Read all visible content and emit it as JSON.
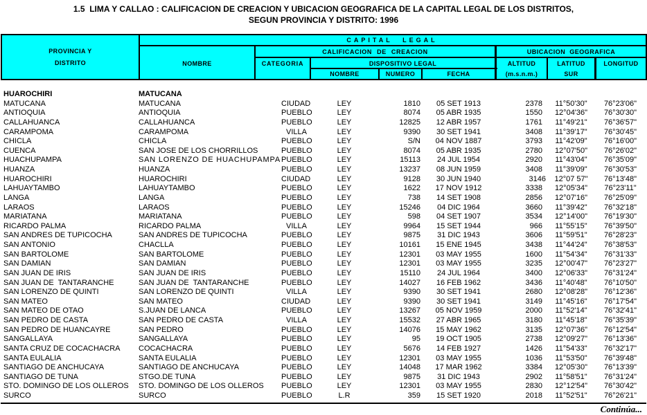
{
  "title": {
    "line1": "1.5  LIMA Y CALLAO : CALIFICACION DE CREACION Y UBICACION GEOGRAFICA DE LA CAPITAL LEGAL DE LOS DISTRITOS,",
    "line2": "SEGUN PROVINCIA Y DISTRITO: 1996"
  },
  "colors": {
    "header_bg": "#00ffff",
    "border": "#000000",
    "text": "#000000",
    "page_bg": "#ffffff"
  },
  "table": {
    "header": {
      "col_provincia": [
        "PROVINCIA Y",
        "DISTRITO"
      ],
      "capital_legal": "CAPITAL LEGAL",
      "nombre": "NOMBRE",
      "calificacion": "CALIFICACION DE CREACION",
      "ubicacion": "UBICACION GEOGRAFICA",
      "categoria": "CATEGORIA",
      "dispositivo": "DISPOSITIVO LEGAL",
      "dispositivo_nombre": "NOMBRE",
      "dispositivo_numero": "NUMERO",
      "dispositivo_fecha": "FECHA",
      "altitud": [
        "ALTITUD",
        "(m.s.n.m.)"
      ],
      "latitud": [
        "LATITUD",
        "SUR"
      ],
      "longitud": "LONGITUD"
    },
    "group_row": {
      "provincia": "HUAROCHIRI",
      "capital": "MATUCANA"
    },
    "rows": [
      {
        "distrito": "MATUCANA",
        "nombre": "MATUCANA",
        "categoria": "CIUDAD",
        "dispositivo": "LEY",
        "numero": "1810",
        "fecha": "05 SET 1913",
        "altitud": "2378",
        "latitud": "11°50'30\"",
        "longitud": "76°23'06\""
      },
      {
        "distrito": "ANTIOQUIA",
        "nombre": "ANTIOQUIA",
        "categoria": "PUEBLO",
        "dispositivo": "LEY",
        "numero": "8074",
        "fecha": "05 ABR 1935",
        "altitud": "1550",
        "latitud": "12°04'36\"",
        "longitud": "76°30'30\""
      },
      {
        "distrito": "CALLAHUANCA",
        "nombre": "CALLAHUANCA",
        "categoria": "PUEBLO",
        "dispositivo": "LEY",
        "numero": "12825",
        "fecha": "12 ABR 1957",
        "altitud": "1761",
        "latitud": "11°49'21\"",
        "longitud": "76°36'57\""
      },
      {
        "distrito": "CARAMPOMA",
        "nombre": "CARAMPOMA",
        "categoria": "VILLA",
        "dispositivo": "LEY",
        "numero": "9390",
        "fecha": "30 SET 1941",
        "altitud": "3408",
        "latitud": "11°39'17\"",
        "longitud": "76°30'45\""
      },
      {
        "distrito": "CHICLA",
        "nombre": "CHICLA",
        "categoria": "PUEBLO",
        "dispositivo": "LEY",
        "numero": "S/N",
        "fecha": "04 NOV 1887",
        "altitud": "3793",
        "latitud": "11°42'09\"",
        "longitud": "76°16'00\""
      },
      {
        "distrito": "CUENCA",
        "nombre": "SAN JOSE DE LOS CHORRILLOS",
        "categoria": "PUEBLO",
        "dispositivo": "LEY",
        "numero": "8074",
        "fecha": "05 ABR 1935",
        "altitud": "2780",
        "latitud": "12°07'50\"",
        "longitud": "76°26'02\""
      },
      {
        "distrito": "HUACHUPAMPA",
        "nombre": "SAN LORENZO DE HUACHUPAMPA",
        "nombre_clipped": true,
        "categoria": "PUEBLO",
        "dispositivo": "LEY",
        "numero": "15113",
        "fecha": "24 JUL 1954",
        "altitud": "2920",
        "latitud": "11°43'04\"",
        "longitud": "76°35'09\""
      },
      {
        "distrito": "HUANZA",
        "nombre": "HUANZA",
        "categoria": "PUEBLO",
        "dispositivo": "LEY",
        "numero": "13237",
        "fecha": "08 JUN 1959",
        "altitud": "3408",
        "latitud": "11°39'09\"",
        "longitud": "76°30'53\""
      },
      {
        "distrito": "HUAROCHIRI",
        "nombre": "HUAROCHIRI",
        "categoria": "CIUDAD",
        "dispositivo": "LEY",
        "numero": "9128",
        "fecha": "30 JUN 1940",
        "altitud": "3146",
        "altitud_offset": true,
        "latitud": "12°07 57\"",
        "longitud": "76°13'48\""
      },
      {
        "distrito": "LAHUAYTAMBO",
        "nombre": "LAHUAYTAMBO",
        "categoria": "PUEBLO",
        "dispositivo": "LEY",
        "numero": "1622",
        "fecha": "17 NOV 1912",
        "altitud": "3338",
        "latitud": "12°05'34\"",
        "longitud": "76°23'11\""
      },
      {
        "distrito": "LANGA",
        "nombre": "LANGA",
        "categoria": "PUEBLO",
        "dispositivo": "LEY",
        "numero": "738",
        "fecha": "14 SET 1908",
        "altitud": "2856",
        "latitud": "12°07'16\"",
        "longitud": "76°25'09\""
      },
      {
        "distrito": "LARAOS",
        "nombre": "LARAOS",
        "categoria": "PUEBLO",
        "dispositivo": "LEY",
        "numero": "15246",
        "fecha": "04 DIC 1964",
        "altitud": "3660",
        "latitud": "11°39'42\"",
        "longitud": "76°32'18\""
      },
      {
        "distrito": "MARIATANA",
        "nombre": "MARIATANA",
        "categoria": "PUEBLO",
        "dispositivo": "LEY",
        "numero": "598",
        "fecha": "04 SET 1907",
        "altitud": "3534",
        "latitud": "12°14'00\"",
        "longitud": "76°19'30\""
      },
      {
        "distrito": "RICARDO PALMA",
        "nombre": "RICARDO PALMA",
        "categoria": "VILLA",
        "dispositivo": "LEY",
        "numero": "9964",
        "fecha": "15 SET 1944",
        "altitud": "966",
        "latitud": "11°55'15\"",
        "longitud": "76°39'50\""
      },
      {
        "distrito": "SAN ANDRES DE TUPICOCHA",
        "nombre": "SAN ANDRES DE TUPICOCHA",
        "categoria": "PUEBLO",
        "dispositivo": "LEY",
        "numero": "9875",
        "fecha": "31 DIC 1943",
        "altitud": "3606",
        "latitud": "11°59'51\"",
        "longitud": "76°28'23\""
      },
      {
        "distrito": "SAN ANTONIO",
        "nombre": "CHACLLA",
        "categoria": "PUEBLO",
        "dispositivo": "LEY",
        "numero": "10161",
        "fecha": "15 ENE 1945",
        "altitud": "3438",
        "latitud": "11°44'24\"",
        "longitud": "76°38'53\""
      },
      {
        "distrito": "SAN BARTOLOME",
        "nombre": "SAN BARTOLOME",
        "categoria": "PUEBLO",
        "dispositivo": "LEY",
        "numero": "12301",
        "fecha": "03 MAY 1955",
        "altitud": "1600",
        "latitud": "11°54'34\"",
        "longitud": "76°31'33\""
      },
      {
        "distrito": "SAN DAMIAN",
        "nombre": "SAN DAMIAN",
        "categoria": "PUEBLO",
        "dispositivo": "LEY",
        "numero": "12301",
        "fecha": "03 MAY 1955",
        "altitud": "3235",
        "latitud": "12°00'47\"",
        "longitud": "76°23'27\""
      },
      {
        "distrito": "SAN JUAN DE IRIS",
        "nombre": "SAN JUAN DE IRIS",
        "categoria": "PUEBLO",
        "dispositivo": "LEY",
        "numero": "15110",
        "fecha": "24 JUL 1964",
        "altitud": "3400",
        "latitud": "12°06'33\"",
        "longitud": "76°31'24\""
      },
      {
        "distrito": "SAN JUAN DE  TANTARANCHE",
        "nombre": "SAN JUAN DE  TANTARANCHE",
        "categoria": "PUEBLO",
        "dispositivo": "LEY",
        "numero": "14027",
        "fecha": "16 FEB 1962",
        "altitud": "3436",
        "latitud": "11°40'48\"",
        "longitud": "76°10'50\""
      },
      {
        "distrito": "SAN LORENZO DE QUINTI",
        "nombre": "SAN LORENZO DE QUINTI",
        "categoria": "VILLA",
        "dispositivo": "LEY",
        "numero": "9390",
        "fecha": "30 SET 1941",
        "altitud": "2680",
        "latitud": "12°08'28\"",
        "longitud": "76°12'36\""
      },
      {
        "distrito": "SAN MATEO",
        "nombre": "SAN MATEO",
        "categoria": "CIUDAD",
        "dispositivo": "LEY",
        "numero": "9390",
        "fecha": "30 SET 1941",
        "altitud": "3149",
        "latitud": "11°45'16\"",
        "longitud": "76°17'54\""
      },
      {
        "distrito": "SAN MATEO DE OTAO",
        "nombre": "S.JUAN DE LANCA",
        "categoria": "PUEBLO",
        "dispositivo": "LEY",
        "numero": "13267",
        "fecha": "05 NOV 1959",
        "altitud": "2000",
        "latitud": "11°52'14\"",
        "longitud": "76°32'41\""
      },
      {
        "distrito": "SAN PEDRO DE CASTA",
        "nombre": "SAN PEDRO DE CASTA",
        "categoria": "VILLA",
        "dispositivo": "LEY",
        "numero": "15532",
        "fecha": "27 ABR 1965",
        "altitud": "3180",
        "latitud": "11°45'18\"",
        "longitud": "76°35'39\""
      },
      {
        "distrito": "SAN PEDRO DE HUANCAYRE",
        "nombre": "SAN PEDRO",
        "categoria": "PUEBLO",
        "dispositivo": "LEY",
        "numero": "14076",
        "fecha": "15 MAY 1962",
        "altitud": "3135",
        "latitud": "12°07'36\"",
        "longitud": "76°12'54\""
      },
      {
        "distrito": "SANGALLAYA",
        "nombre": "SANGALLAYA",
        "categoria": "PUEBLO",
        "dispositivo": "LEY",
        "numero": "95",
        "fecha": "19 OCT 1905",
        "altitud": "2738",
        "latitud": "12°09'27\"",
        "longitud": "76°13'36\""
      },
      {
        "distrito": "SANTA CRUZ DE COCACHACRA",
        "nombre": "COCACHACRA",
        "categoria": "PUEBLO",
        "dispositivo": "LEY",
        "numero": "5676",
        "fecha": "14 FEB 1927",
        "altitud": "1426",
        "latitud": "11°54'33\"",
        "longitud": "76°32'17\""
      },
      {
        "distrito": "SANTA EULALIA",
        "nombre": "SANTA EULALIA",
        "categoria": "PUEBLO",
        "dispositivo": "LEY",
        "numero": "12301",
        "fecha": "03 MAY 1955",
        "altitud": "1036",
        "latitud": "11°53'50\"",
        "longitud": "76°39'48\""
      },
      {
        "distrito": "SANTIAGO DE ANCHUCAYA",
        "nombre": "SANTIAGO DE ANCHUCAYA",
        "categoria": "PUEBLO",
        "dispositivo": "LEY",
        "numero": "14048",
        "fecha": "17 MAR 1962",
        "altitud": "3384",
        "latitud": "12°05'30\"",
        "longitud": "76°13'39\""
      },
      {
        "distrito": "SANTIAGO DE TUNA",
        "nombre": "STGO.DE TUNA",
        "categoria": "PUEBLO",
        "dispositivo": "LEY",
        "numero": "9875",
        "fecha": "31 DIC 1943",
        "altitud": "2902",
        "latitud": "11°58'51\"",
        "longitud": "76°31'24\""
      },
      {
        "distrito": "STO. DOMINGO DE LOS OLLEROS",
        "nombre": "STO. DOMINGO DE LOS OLLEROS",
        "categoria": "PUEBLO",
        "dispositivo": "LEY",
        "numero": "12301",
        "fecha": "03 MAY 1955",
        "altitud": "2830",
        "latitud": "12°12'54\"",
        "longitud": "76°30'42\""
      },
      {
        "distrito": "SURCO",
        "nombre": "SURCO",
        "categoria": "PUEBLO",
        "dispositivo": "L.R",
        "numero": "359",
        "fecha": "15 SET 1920",
        "altitud": "2018",
        "latitud": "11°52'51\"",
        "longitud": "76°26'21\""
      }
    ]
  },
  "footer": {
    "continua": "Continúa..."
  }
}
